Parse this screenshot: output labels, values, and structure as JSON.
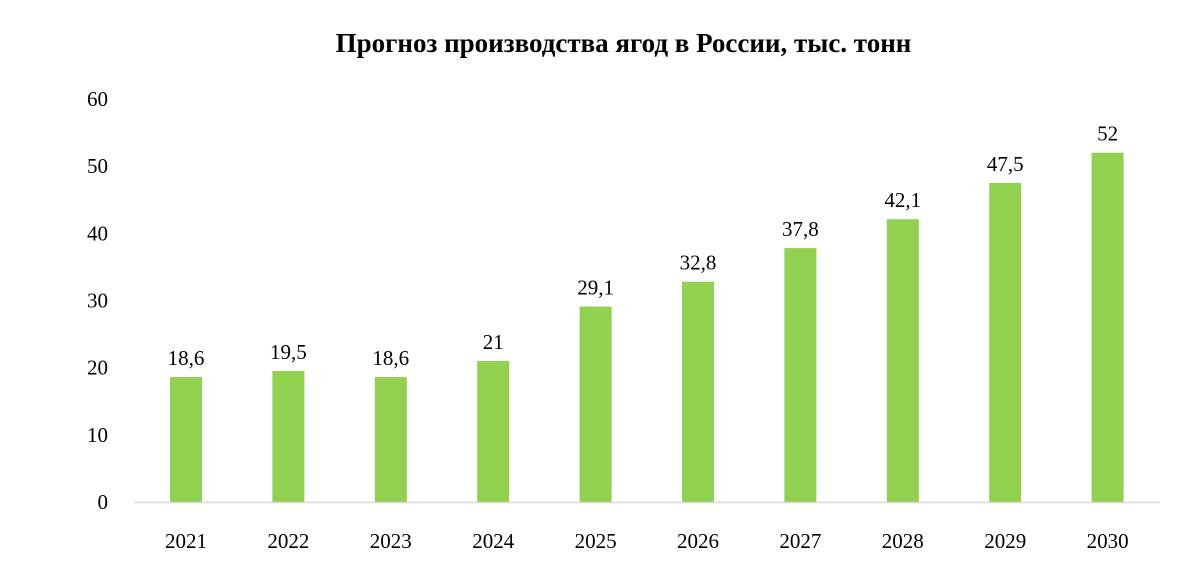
{
  "chart_data": {
    "type": "bar",
    "title": "Прогноз производства ягод в России, тыс. тонн",
    "categories": [
      "2021",
      "2022",
      "2023",
      "2024",
      "2025",
      "2026",
      "2027",
      "2028",
      "2029",
      "2030"
    ],
    "values": [
      18.6,
      19.5,
      18.6,
      21,
      29.1,
      32.8,
      37.8,
      42.1,
      47.5,
      52
    ],
    "data_labels": [
      "18,6",
      "19,5",
      "18,6",
      "21",
      "29,1",
      "32,8",
      "37,8",
      "42,1",
      "47,5",
      "52"
    ],
    "ylim": [
      0,
      60
    ],
    "yticks": [
      0,
      10,
      20,
      30,
      40,
      50,
      60
    ],
    "grid": false,
    "bar_color": "#92d050",
    "axis_color": "#d9d9d9"
  }
}
